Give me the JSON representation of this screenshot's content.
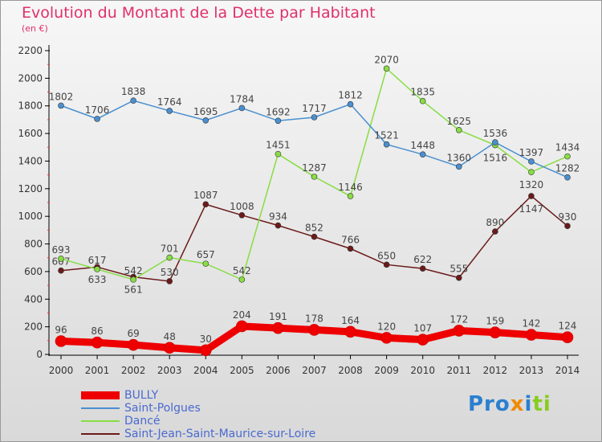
{
  "chart_data": {
    "type": "line",
    "title": "Evolution du Montant de la Dette par Habitant",
    "ylabel": "(en €)",
    "x": [
      2000,
      2001,
      2002,
      2003,
      2004,
      2005,
      2006,
      2007,
      2008,
      2009,
      2010,
      2011,
      2012,
      2013,
      2014
    ],
    "ylim": [
      0,
      2200
    ],
    "yticks": [
      0,
      200,
      400,
      600,
      800,
      1000,
      1200,
      1400,
      1600,
      1800,
      2000,
      2200
    ],
    "series": [
      {
        "name": "BULLY",
        "color": "#ee0000",
        "values": [
          96,
          86,
          69,
          48,
          30,
          204,
          191,
          178,
          164,
          120,
          107,
          172,
          159,
          142,
          124
        ]
      },
      {
        "name": "Saint-Polgues",
        "color": "#4a90d0",
        "values": [
          1802,
          1706,
          1838,
          1764,
          1695,
          1784,
          1692,
          1717,
          1812,
          1521,
          1448,
          1360,
          1536,
          1397,
          1282
        ]
      },
      {
        "name": "Dancé",
        "color": "#88dd44",
        "values": [
          693,
          617,
          542,
          701,
          657,
          542,
          1451,
          1287,
          1146,
          2070,
          1835,
          1625,
          1516,
          1320,
          1434
        ]
      },
      {
        "name": "Saint-Jean-Saint-Maurice-sur-Loire",
        "color": "#6b1a1a",
        "values": [
          607,
          633,
          561,
          530,
          1087,
          1008,
          934,
          852,
          766,
          650,
          622,
          555,
          890,
          1147,
          930
        ]
      }
    ],
    "legend": "bottom-left"
  },
  "logo": "Proxiti"
}
